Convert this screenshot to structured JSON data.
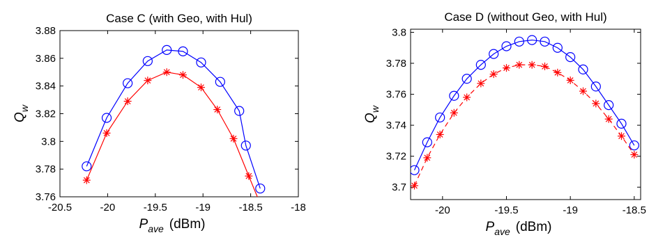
{
  "chart_data": [
    {
      "type": "line",
      "title": "Case C (with Geo, with Hul)",
      "xlabel": "P",
      "xlabel_sub": "ave",
      "xlabel_unit": "(dBm)",
      "ylabel": "Q",
      "ylabel_sub": "w",
      "xlim": [
        -20.5,
        -18
      ],
      "ylim": [
        3.76,
        3.88
      ],
      "xticks": [
        -20.5,
        -20,
        -19.5,
        -19,
        -18.5,
        -18
      ],
      "xtick_labels": [
        "-20.5",
        "-20",
        "-19.5",
        "-19",
        "-18.5",
        "-18"
      ],
      "yticks": [
        3.76,
        3.78,
        3.8,
        3.82,
        3.84,
        3.86,
        3.88
      ],
      "ytick_labels": [
        "3.76",
        "3.78",
        "3.8",
        "3.82",
        "3.84",
        "3.86",
        "3.88"
      ],
      "grid": false,
      "series": [
        {
          "color": "#0000ff",
          "marker": "circle",
          "line_style": "solid",
          "x": [
            -20.22,
            -20.01,
            -19.79,
            -19.58,
            -19.38,
            -19.21,
            -19.02,
            -18.82,
            -18.62,
            -18.55,
            -18.4
          ],
          "y": [
            3.782,
            3.817,
            3.842,
            3.858,
            3.866,
            3.865,
            3.857,
            3.843,
            3.822,
            3.797,
            3.766
          ]
        },
        {
          "color": "#ff0000",
          "marker": "asterisk",
          "line_style": "solid",
          "x": [
            -20.22,
            -20.01,
            -19.79,
            -19.58,
            -19.38,
            -19.21,
            -19.02,
            -18.85,
            -18.68,
            -18.52,
            -18.4
          ],
          "y": [
            3.772,
            3.806,
            3.829,
            3.844,
            3.85,
            3.848,
            3.839,
            3.823,
            3.802,
            3.775,
            3.755
          ]
        }
      ]
    },
    {
      "type": "line",
      "title": "Case D (without Geo, with Hul)",
      "xlabel": "P",
      "xlabel_sub": "ave",
      "xlabel_unit": "(dBm)",
      "ylabel": "Q",
      "ylabel_sub": "w",
      "xlim": [
        -20.25,
        -18.45
      ],
      "ylim": [
        3.692,
        3.802
      ],
      "xticks": [
        -20,
        -19.5,
        -19,
        -18.5
      ],
      "xtick_labels": [
        "-20",
        "-19.5",
        "-19",
        "-18.5"
      ],
      "yticks": [
        3.7,
        3.72,
        3.74,
        3.76,
        3.78,
        3.8
      ],
      "ytick_labels": [
        "3.7",
        "3.72",
        "3.74",
        "3.76",
        "3.78",
        "3.8"
      ],
      "grid": false,
      "series": [
        {
          "color": "#0000ff",
          "marker": "circle",
          "line_style": "solid",
          "x": [
            -20.22,
            -20.12,
            -20.02,
            -19.91,
            -19.81,
            -19.7,
            -19.6,
            -19.5,
            -19.4,
            -19.3,
            -19.2,
            -19.1,
            -19.0,
            -18.9,
            -18.8,
            -18.7,
            -18.6,
            -18.5
          ],
          "y": [
            3.711,
            3.729,
            3.745,
            3.759,
            3.77,
            3.779,
            3.786,
            3.791,
            3.794,
            3.795,
            3.794,
            3.79,
            3.784,
            3.776,
            3.765,
            3.753,
            3.741,
            3.727
          ]
        },
        {
          "color": "#ff0000",
          "marker": "asterisk",
          "line_style": "dashed",
          "x": [
            -20.22,
            -20.12,
            -20.02,
            -19.91,
            -19.81,
            -19.7,
            -19.6,
            -19.5,
            -19.4,
            -19.3,
            -19.2,
            -19.1,
            -19.0,
            -18.9,
            -18.8,
            -18.7,
            -18.6,
            -18.5
          ],
          "y": [
            3.701,
            3.719,
            3.734,
            3.748,
            3.758,
            3.767,
            3.773,
            3.777,
            3.779,
            3.779,
            3.778,
            3.774,
            3.769,
            3.762,
            3.754,
            3.744,
            3.733,
            3.721
          ]
        }
      ]
    }
  ]
}
